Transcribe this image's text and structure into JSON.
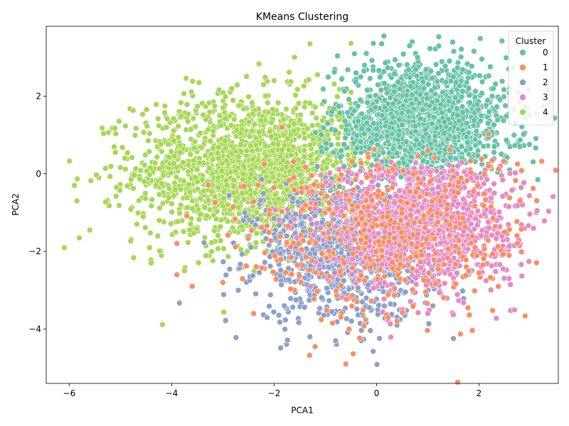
{
  "chart_data": {
    "type": "scatter",
    "title": "KMeans Clustering",
    "xlabel": "PCA1",
    "ylabel": "PCA2",
    "xlim": [
      -6.45,
      3.55
    ],
    "ylim": [
      -5.4,
      3.8
    ],
    "xticks": [
      -6,
      -4,
      -2,
      0,
      2
    ],
    "yticks": [
      -4,
      -2,
      0,
      2
    ],
    "grid": false,
    "legend": {
      "title": "Cluster",
      "placement": "top-right"
    },
    "series": [
      {
        "name": "0",
        "color": "#66c2a5",
        "center": [
          0.9,
          1.3
        ],
        "spread": [
          0.85,
          0.75
        ],
        "count": 1600,
        "samples": [
          [
            -0.2,
            3.1
          ],
          [
            0.1,
            3.35
          ],
          [
            0.8,
            3.0
          ],
          [
            1.5,
            2.5
          ],
          [
            2.2,
            1.6
          ],
          [
            2.8,
            0.7
          ],
          [
            3.15,
            -0.15
          ],
          [
            2.6,
            0.1
          ],
          [
            1.8,
            2.2
          ],
          [
            0.0,
            1.0
          ],
          [
            -0.4,
            2.6
          ],
          [
            1.2,
            0.4
          ]
        ]
      },
      {
        "name": "1",
        "color": "#fc8d62",
        "center": [
          0.2,
          -1.6
        ],
        "spread": [
          1.4,
          1.1
        ],
        "count": 450,
        "samples": [
          [
            -3.9,
            -2.6
          ],
          [
            -3.6,
            -2.9
          ],
          [
            -3.0,
            -2.8
          ],
          [
            -2.4,
            -3.6
          ],
          [
            -1.2,
            -4.45
          ],
          [
            -0.6,
            -4.9
          ],
          [
            2.5,
            -1.5
          ],
          [
            2.8,
            -0.7
          ],
          [
            1.8,
            -2.5
          ],
          [
            0.4,
            -3.8
          ],
          [
            -2.8,
            -0.85
          ],
          [
            1.0,
            0.6
          ]
        ]
      },
      {
        "name": "2",
        "color": "#8da0cb",
        "center": [
          -0.6,
          -2.0
        ],
        "spread": [
          0.9,
          0.9
        ],
        "count": 900,
        "samples": [
          [
            -2.7,
            -3.0
          ],
          [
            -1.3,
            -4.2
          ],
          [
            -0.8,
            -4.3
          ],
          [
            -0.3,
            -4.3
          ],
          [
            0.4,
            -3.9
          ],
          [
            1.4,
            -2.2
          ],
          [
            -2.6,
            -1.2
          ],
          [
            -1.0,
            -0.1
          ],
          [
            -0.2,
            -3.2
          ],
          [
            -1.8,
            -3.4
          ]
        ]
      },
      {
        "name": "3",
        "color": "#e78ac3",
        "center": [
          0.9,
          -1.2
        ],
        "spread": [
          0.9,
          0.85
        ],
        "count": 1200,
        "samples": [
          [
            -1.2,
            -0.9
          ],
          [
            2.3,
            -0.5
          ],
          [
            2.85,
            -0.8
          ],
          [
            1.0,
            -3.6
          ],
          [
            0.5,
            -3.5
          ],
          [
            1.8,
            -1.8
          ],
          [
            0.0,
            0.1
          ],
          [
            1.5,
            -0.3
          ],
          [
            0.6,
            -2.8
          ],
          [
            2.2,
            -1.4
          ]
        ]
      },
      {
        "name": "4",
        "color": "#a6d854",
        "center": [
          -2.4,
          0.1
        ],
        "spread": [
          1.15,
          0.95
        ],
        "count": 1800,
        "samples": [
          [
            -5.9,
            -0.3
          ],
          [
            -5.85,
            -0.7
          ],
          [
            -5.6,
            -1.45
          ],
          [
            -5.1,
            0.55
          ],
          [
            -4.4,
            -2.3
          ],
          [
            -3.75,
            -2.5
          ],
          [
            -2.6,
            -2.4
          ],
          [
            -1.3,
            3.35
          ],
          [
            -1.6,
            3.0
          ],
          [
            -0.5,
            2.1
          ],
          [
            -0.8,
            0.6
          ],
          [
            -3.0,
            1.7
          ],
          [
            -4.1,
            1.2
          ],
          [
            -2.0,
            2.4
          ]
        ]
      }
    ]
  }
}
